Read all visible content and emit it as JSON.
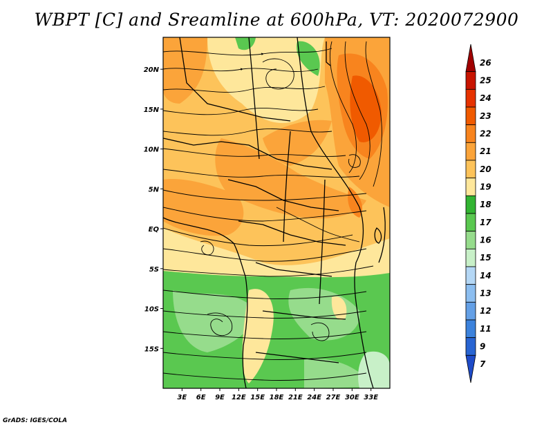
{
  "title": "WBPT [C] and Sreamline at 600hPa, VT: 2020072900",
  "footer": "GrADS: IGES/COLA",
  "map": {
    "lon_range": [
      0,
      36
    ],
    "lat_range": [
      -20,
      24
    ],
    "lon_ticks": [
      "3E",
      "6E",
      "9E",
      "12E",
      "15E",
      "18E",
      "21E",
      "24E",
      "27E",
      "30E",
      "33E"
    ],
    "lon_values": [
      3,
      6,
      9,
      12,
      15,
      18,
      21,
      24,
      27,
      30,
      33
    ],
    "lat_ticks": [
      "20N",
      "15N",
      "10N",
      "5N",
      "EQ",
      "5S",
      "10S",
      "15S"
    ],
    "lat_values": [
      20,
      15,
      10,
      5,
      0,
      -5,
      -10,
      -15
    ]
  },
  "colorbar": {
    "labels": [
      "26",
      "25",
      "24",
      "23",
      "22",
      "21",
      "20",
      "19",
      "18",
      "17",
      "16",
      "15",
      "14",
      "13",
      "12",
      "11",
      "9",
      "7"
    ],
    "colors": [
      "#a00000",
      "#c81400",
      "#e63200",
      "#f05a00",
      "#f8841e",
      "#fba43a",
      "#fdc35a",
      "#fee79b",
      "#32b432",
      "#5ac850",
      "#96dc8c",
      "#c8f0c8",
      "#b4d7f5",
      "#8cbef0",
      "#64a0e6",
      "#3c82dc",
      "#2864d2",
      "#1e4bc8"
    ]
  }
}
